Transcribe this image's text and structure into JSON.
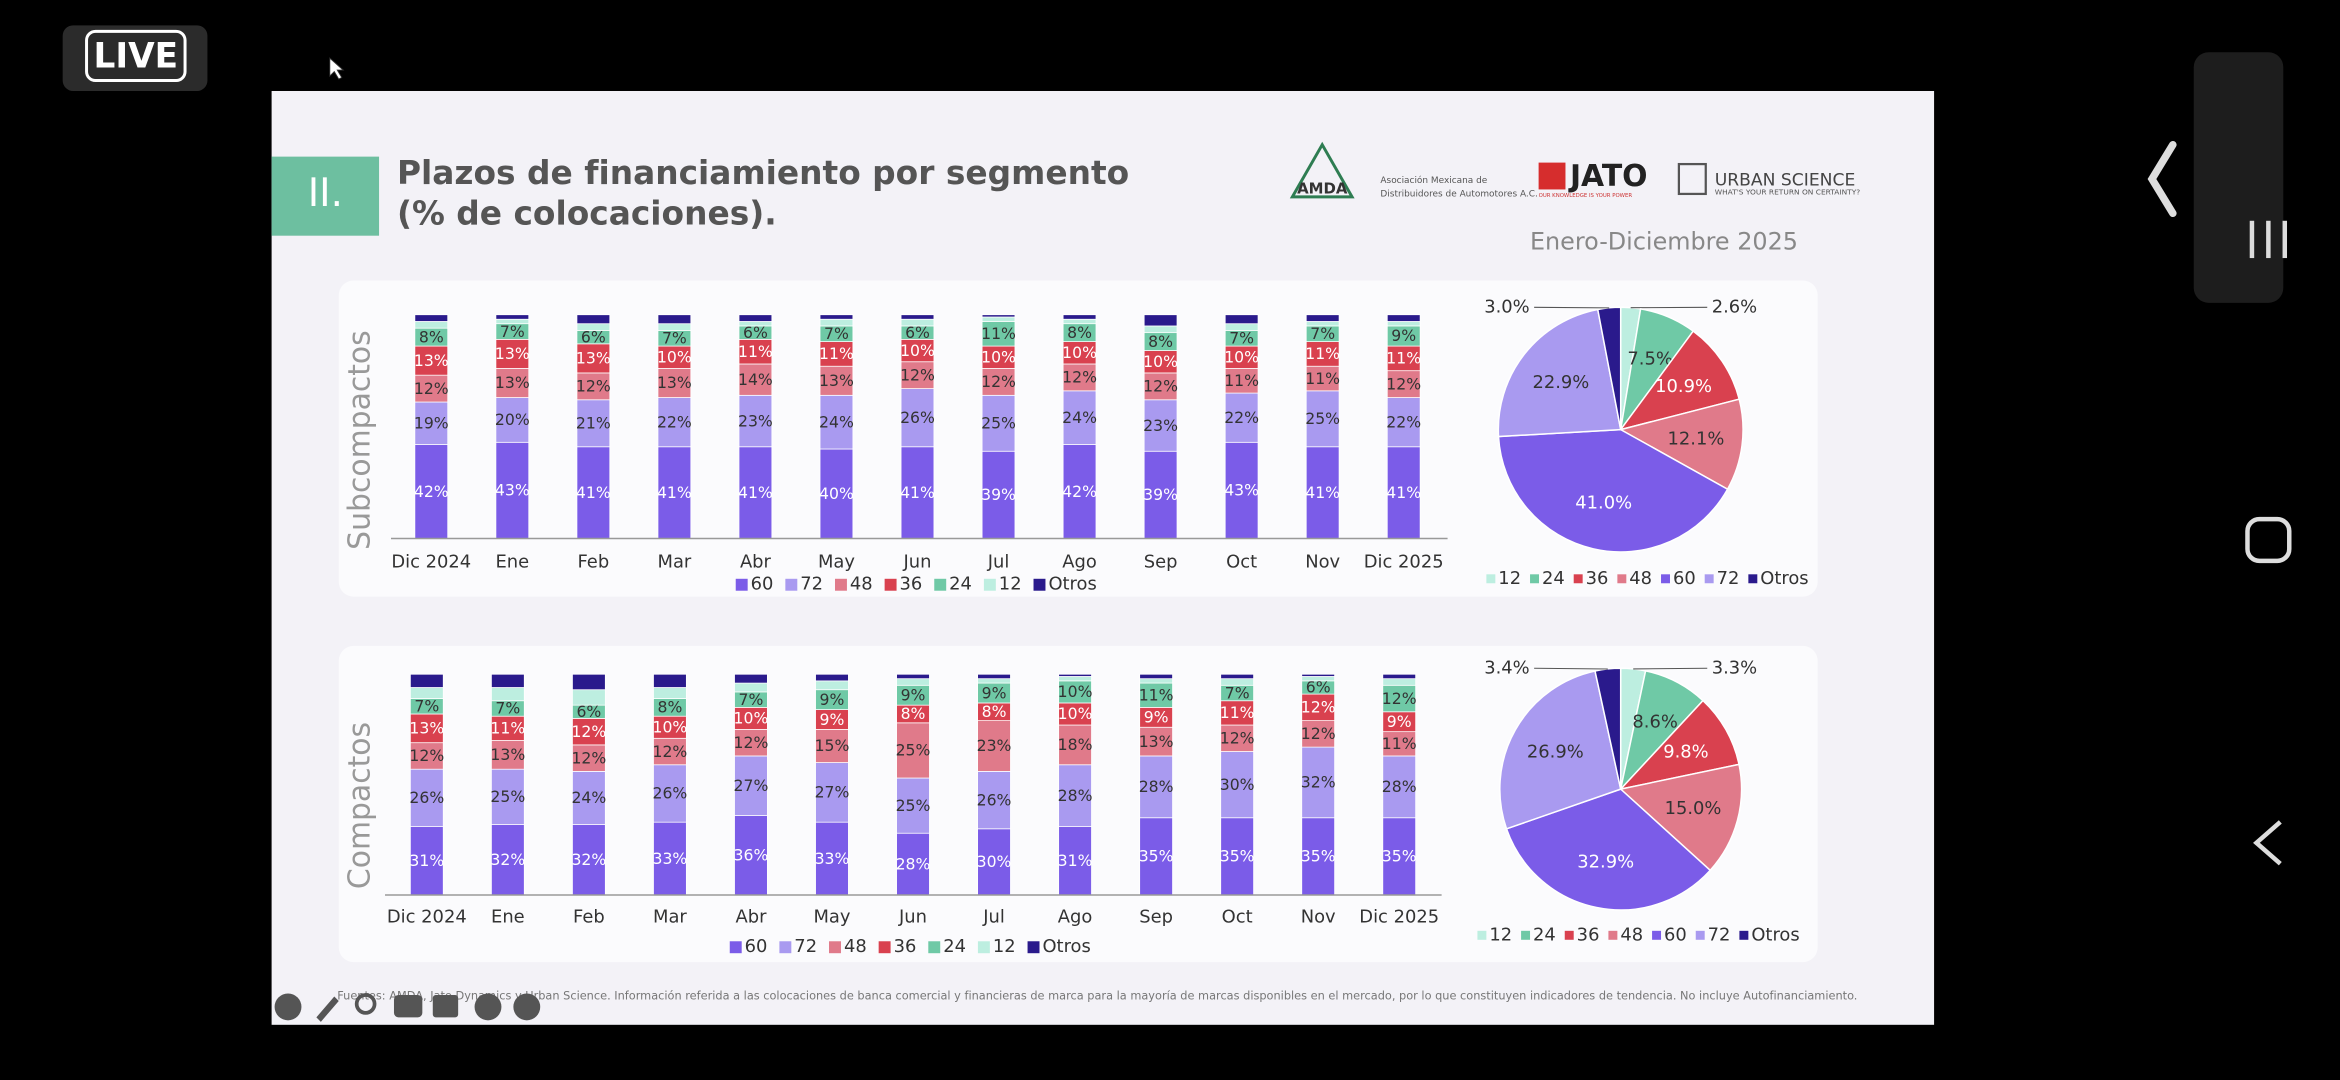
{
  "status": {
    "live": "LIVE"
  },
  "slide": {
    "section": "II.",
    "title_lines": [
      "Plazos de financiamiento por segmento",
      "(% de colocaciones)."
    ],
    "period": "Enero-Diciembre 2025",
    "logos": {
      "amda": "AMDA",
      "amda_name_lines": [
        "Asociación Mexicana de",
        "Distribuidores de Automotores A.C."
      ],
      "jato": "JATO",
      "jato_tagline": "OUR KNOWLEDGE IS YOUR POWER",
      "urban_science": "URBAN SCIENCE",
      "urban_tagline": "WHAT'S YOUR RETURN ON CERTAINTY?"
    },
    "footnote": "Fuentes: AMDA, Jato Dynamics y Urban Science. Información referida a las colocaciones de banca comercial y financieras de marca para la mayoría de marcas disponibles en el mercado, por lo que constituyen indicadores de tendencia. No incluye Autofinanciamiento."
  },
  "chart_data": [
    {
      "type": "bar",
      "stacked": true,
      "y_label": "Subcompactos",
      "ylim": [
        0,
        100
      ],
      "categories": [
        "Dic 2024",
        "Ene",
        "Feb",
        "Mar",
        "Abr",
        "May",
        "Jun",
        "Jul",
        "Ago",
        "Sep",
        "Oct",
        "Nov",
        "Dic 2025"
      ],
      "series": [
        {
          "name": "60",
          "color": "#7b5ce8",
          "values": [
            42,
            43,
            41,
            41,
            41,
            40,
            41,
            39,
            42,
            39,
            43,
            41,
            41
          ],
          "value_labels": [
            "42%",
            "43%",
            "41%",
            "41%",
            "41%",
            "40%",
            "41%",
            "39%",
            "42%",
            "39%",
            "43%",
            "41%",
            "41%"
          ]
        },
        {
          "name": "72",
          "color": "#a99af0",
          "values": [
            19,
            20,
            21,
            22,
            23,
            24,
            26,
            25,
            24,
            23,
            22,
            25,
            22
          ],
          "value_labels": [
            "19%",
            "20%",
            "21%",
            "22%",
            "23%",
            "24%",
            "26%",
            "25%",
            "24%",
            "23%",
            "22%",
            "25%",
            "22%"
          ]
        },
        {
          "name": "48",
          "color": "#e07a8a",
          "values": [
            12,
            13,
            12,
            13,
            14,
            13,
            12,
            12,
            12,
            12,
            11,
            11,
            12
          ],
          "value_labels": [
            "12%",
            "13%",
            "12%",
            "13%",
            "14%",
            "13%",
            "12%",
            "12%",
            "12%",
            "12%",
            "11%",
            "11%",
            "12%"
          ]
        },
        {
          "name": "36",
          "color": "#d9414f",
          "values": [
            13,
            13,
            13,
            10,
            11,
            11,
            10,
            10,
            10,
            10,
            10,
            11,
            11
          ],
          "value_labels": [
            "13%",
            "13%",
            "13%",
            "10%",
            "11%",
            "11%",
            "10%",
            "10%",
            "10%",
            "10%",
            "10%",
            "11%",
            "11%"
          ]
        },
        {
          "name": "24",
          "color": "#6fc9a6",
          "values": [
            8,
            7,
            6,
            7,
            6,
            7,
            6,
            11,
            8,
            8,
            7,
            7,
            9
          ],
          "value_labels": [
            "8%",
            "7%",
            "6%",
            "7%",
            "6%",
            "7%",
            "6%",
            "11%",
            "8%",
            "8%",
            "7%",
            "7%",
            "9%"
          ]
        },
        {
          "name": "12",
          "color": "#bdeee0",
          "values": [
            3,
            2,
            3,
            3,
            2,
            3,
            3,
            2,
            2,
            3,
            3,
            2,
            2
          ]
        },
        {
          "name": "Otros",
          "color": "#2a1a8c",
          "values": [
            3,
            2,
            4,
            4,
            3,
            2,
            2,
            1,
            2,
            5,
            4,
            3,
            3
          ]
        }
      ]
    },
    {
      "type": "pie",
      "categories": [
        "12",
        "24",
        "36",
        "48",
        "60",
        "72",
        "Otros"
      ],
      "colors": [
        "#bdeee0",
        "#6fc9a6",
        "#d9414f",
        "#e07a8a",
        "#7b5ce8",
        "#a99af0",
        "#2a1a8c"
      ],
      "values": [
        2.6,
        7.5,
        10.9,
        12.1,
        41,
        22.9,
        3
      ],
      "value_labels": [
        "2.6%",
        "7.5%",
        "10.9%",
        "12.1%",
        "41.0%",
        "22.9%",
        "3.0%"
      ]
    },
    {
      "type": "bar",
      "stacked": true,
      "y_label": "Compactos",
      "ylim": [
        0,
        100
      ],
      "categories": [
        "Dic 2024",
        "Ene",
        "Feb",
        "Mar",
        "Abr",
        "May",
        "Jun",
        "Jul",
        "Ago",
        "Sep",
        "Oct",
        "Nov",
        "Dic 2025"
      ],
      "series": [
        {
          "name": "60",
          "color": "#7b5ce8",
          "values": [
            31,
            32,
            32,
            33,
            36,
            33,
            28,
            30,
            31,
            35,
            35,
            35,
            35
          ],
          "value_labels": [
            "31%",
            "32%",
            "32%",
            "33%",
            "36%",
            "33%",
            "28%",
            "30%",
            "31%",
            "35%",
            "35%",
            "35%",
            "35%"
          ]
        },
        {
          "name": "72",
          "color": "#a99af0",
          "values": [
            26,
            25,
            24,
            26,
            27,
            27,
            25,
            26,
            28,
            28,
            30,
            32,
            28
          ],
          "value_labels": [
            "26%",
            "25%",
            "24%",
            "26%",
            "27%",
            "27%",
            "25%",
            "26%",
            "28%",
            "28%",
            "30%",
            "32%",
            "28%"
          ]
        },
        {
          "name": "48",
          "color": "#e07a8a",
          "values": [
            12,
            13,
            12,
            12,
            12,
            15,
            25,
            23,
            18,
            13,
            12,
            12,
            11
          ],
          "value_labels": [
            "12%",
            "13%",
            "12%",
            "12%",
            "12%",
            "15%",
            "25%",
            "23%",
            "18%",
            "13%",
            "12%",
            "12%",
            "11%"
          ]
        },
        {
          "name": "36",
          "color": "#d9414f",
          "values": [
            13,
            11,
            12,
            10,
            10,
            9,
            8,
            8,
            10,
            9,
            11,
            12,
            9
          ],
          "value_labels": [
            "13%",
            "11%",
            "12%",
            "10%",
            "10%",
            "9%",
            "8%",
            "8%",
            "10%",
            "9%",
            "11%",
            "12%",
            "9%"
          ]
        },
        {
          "name": "24",
          "color": "#6fc9a6",
          "values": [
            7,
            7,
            6,
            8,
            7,
            9,
            9,
            9,
            10,
            11,
            7,
            6,
            12
          ],
          "value_labels": [
            "7%",
            "7%",
            "6%",
            "8%",
            "7%",
            "9%",
            "9%",
            "9%",
            "10%",
            "11%",
            "7%",
            "6%",
            "12%"
          ]
        },
        {
          "name": "12",
          "color": "#bdeee0",
          "values": [
            5,
            6,
            7,
            5,
            4,
            4,
            3,
            2,
            2,
            2,
            3,
            2,
            3
          ]
        },
        {
          "name": "Otros",
          "color": "#2a1a8c",
          "values": [
            6,
            6,
            7,
            6,
            4,
            3,
            2,
            2,
            1,
            2,
            2,
            1,
            2
          ]
        }
      ]
    },
    {
      "type": "pie",
      "categories": [
        "12",
        "24",
        "36",
        "48",
        "60",
        "72",
        "Otros"
      ],
      "colors": [
        "#bdeee0",
        "#6fc9a6",
        "#d9414f",
        "#e07a8a",
        "#7b5ce8",
        "#a99af0",
        "#2a1a8c"
      ],
      "values": [
        3.3,
        8.6,
        9.8,
        15,
        32.9,
        26.9,
        3.4
      ],
      "value_labels": [
        "3.3%",
        "8.6%",
        "9.8%",
        "15.0%",
        "32.9%",
        "26.9%",
        "3.4%"
      ]
    }
  ]
}
